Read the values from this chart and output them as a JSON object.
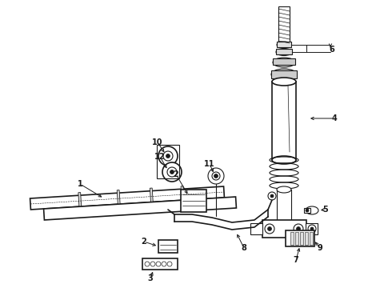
{
  "bg_color": "#ffffff",
  "lc": "#1a1a1a",
  "fig_width": 4.9,
  "fig_height": 3.6,
  "dpi": 100
}
